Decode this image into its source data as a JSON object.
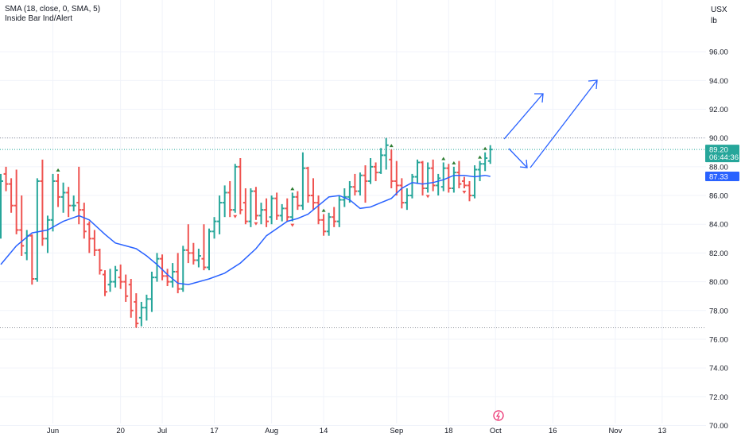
{
  "legend": {
    "line1": "SMA (18, close, 0, SMA, 5)",
    "line2": "Inside Bar Ind/Alert"
  },
  "unit": {
    "currency": "USX",
    "measure": "lb"
  },
  "price_tag": {
    "price": "89.20",
    "countdown": "06:44:36"
  },
  "sma_tag": "87.33",
  "chart_data": {
    "type": "ohlc",
    "colors": {
      "up": "#26a69a",
      "down": "#ef5350",
      "neutral": "#2e7d32",
      "sma": "#2962ff",
      "arrow": "#2962ff",
      "tag_last": "#26a69a",
      "tag_sma": "#2962ff"
    },
    "y_range": [
      69.2,
      99.6
    ],
    "y_ticks": [
      "70.00",
      "72.00",
      "74.00",
      "76.00",
      "78.00",
      "80.00",
      "82.00",
      "84.00",
      "86.00",
      "88.00",
      "90.00",
      "92.00",
      "94.00",
      "96.00"
    ],
    "x_labels": [
      {
        "label": "Jun",
        "bar": 10
      },
      {
        "label": "20",
        "bar": 23
      },
      {
        "label": "Jul",
        "bar": 31
      },
      {
        "label": "17",
        "bar": 41
      },
      {
        "label": "Aug",
        "bar": 52
      },
      {
        "label": "14",
        "bar": 62
      },
      {
        "label": "Sep",
        "bar": 76
      },
      {
        "label": "18",
        "bar": 86
      },
      {
        "label": "Oct",
        "bar": 95
      },
      {
        "label": "16",
        "bar": 106
      },
      {
        "label": "Nov",
        "bar": 118
      },
      {
        "label": "13",
        "bar": 127
      }
    ],
    "ref_lines": [
      90.0,
      89.2,
      76.8
    ],
    "bars": [
      [
        86.5,
        87.5,
        83.0,
        87.0
      ],
      [
        87.5,
        88.0,
        86.3,
        86.8
      ],
      [
        86.8,
        87.2,
        84.8,
        85.3
      ],
      [
        85.3,
        87.8,
        83.3,
        83.6
      ],
      [
        83.6,
        86.0,
        81.8,
        82.5
      ],
      [
        82.0,
        83.6,
        81.5,
        83.2
      ],
      [
        83.2,
        83.3,
        79.8,
        80.2
      ],
      [
        80.2,
        87.2,
        80.0,
        87.0
      ],
      [
        87.0,
        88.5,
        82.5,
        83.0
      ],
      [
        83.0,
        84.6,
        82.0,
        84.3
      ],
      [
        84.3,
        87.5,
        83.5,
        87.0
      ],
      [
        87.0,
        87.5,
        85.2,
        85.9
      ],
      [
        85.9,
        86.9,
        84.8,
        86.2
      ],
      [
        86.2,
        86.6,
        84.5,
        85.3
      ],
      [
        85.3,
        86.0,
        84.9,
        85.3
      ],
      [
        85.5,
        88.0,
        84.0,
        85.0
      ],
      [
        85.0,
        85.5,
        83.0,
        83.5
      ],
      [
        84.0,
        84.2,
        82.0,
        83.0
      ],
      [
        83.0,
        83.6,
        81.8,
        82.2
      ],
      [
        82.2,
        82.3,
        80.5,
        80.8
      ],
      [
        80.5,
        80.8,
        79.0,
        79.3
      ],
      [
        79.8,
        80.9,
        79.3,
        80.0
      ],
      [
        80.0,
        81.1,
        79.6,
        80.8
      ],
      [
        80.3,
        81.2,
        79.5,
        80.0
      ],
      [
        80.0,
        80.5,
        78.6,
        79.0
      ],
      [
        79.8,
        80.2,
        77.5,
        78.0
      ],
      [
        78.6,
        79.2,
        76.8,
        77.1
      ],
      [
        77.5,
        78.6,
        76.9,
        78.2
      ],
      [
        78.2,
        79.1,
        77.3,
        78.8
      ],
      [
        78.8,
        80.7,
        77.9,
        80.3
      ],
      [
        80.3,
        82.0,
        80.0,
        81.6
      ],
      [
        81.6,
        81.9,
        80.1,
        80.4
      ],
      [
        80.4,
        80.9,
        79.7,
        80.0
      ],
      [
        80.0,
        81.3,
        79.6,
        80.7
      ],
      [
        80.7,
        82.0,
        79.2,
        79.5
      ],
      [
        79.5,
        82.5,
        79.3,
        82.2
      ],
      [
        82.2,
        84.0,
        81.3,
        82.0
      ],
      [
        82.0,
        82.7,
        81.2,
        81.5
      ],
      [
        81.5,
        82.3,
        81.0,
        81.8
      ],
      [
        81.6,
        84.0,
        80.8,
        81.0
      ],
      [
        81.0,
        83.7,
        80.8,
        83.5
      ],
      [
        83.5,
        84.5,
        83.0,
        84.2
      ],
      [
        84.2,
        86.0,
        83.3,
        85.5
      ],
      [
        85.5,
        86.7,
        84.5,
        86.2
      ],
      [
        86.2,
        87.0,
        84.5,
        85.0
      ],
      [
        85.0,
        88.2,
        84.8,
        88.0
      ],
      [
        88.0,
        88.6,
        84.7,
        85.0
      ],
      [
        85.5,
        86.5,
        84.0,
        84.2
      ],
      [
        84.2,
        86.5,
        83.8,
        86.3
      ],
      [
        86.3,
        86.6,
        84.3,
        84.6
      ],
      [
        84.6,
        85.5,
        84.0,
        85.0
      ],
      [
        85.0,
        85.8,
        83.8,
        84.2
      ],
      [
        84.5,
        86.0,
        84.0,
        85.8
      ],
      [
        85.8,
        86.2,
        84.3,
        84.6
      ],
      [
        84.6,
        85.4,
        84.2,
        85.1
      ],
      [
        85.1,
        85.8,
        84.2,
        84.5
      ],
      [
        84.5,
        86.2,
        84.2,
        85.9
      ],
      [
        85.9,
        86.3,
        85.0,
        85.3
      ],
      [
        85.3,
        89.0,
        85.0,
        87.9
      ],
      [
        87.9,
        88.0,
        85.5,
        86.0
      ],
      [
        86.0,
        87.2,
        85.0,
        85.5
      ],
      [
        85.5,
        86.0,
        84.0,
        84.3
      ],
      [
        84.3,
        84.7,
        83.2,
        83.5
      ],
      [
        83.5,
        84.8,
        83.2,
        84.5
      ],
      [
        84.5,
        85.2,
        83.8,
        84.2
      ],
      [
        84.2,
        86.0,
        83.8,
        85.7
      ],
      [
        85.7,
        86.5,
        85.2,
        85.9
      ],
      [
        85.9,
        87.0,
        85.5,
        86.6
      ],
      [
        86.6,
        87.5,
        86.0,
        86.3
      ],
      [
        86.3,
        87.6,
        86.0,
        87.4
      ],
      [
        87.4,
        88.1,
        85.5,
        87.0
      ],
      [
        87.0,
        88.6,
        86.8,
        88.0
      ],
      [
        88.0,
        88.3,
        87.0,
        87.6
      ],
      [
        87.6,
        89.3,
        87.5,
        88.8
      ],
      [
        88.8,
        90.0,
        87.8,
        89.5
      ],
      [
        88.5,
        89.2,
        86.5,
        87.0
      ],
      [
        87.0,
        88.4,
        86.0,
        86.7
      ],
      [
        86.7,
        87.2,
        85.1,
        85.5
      ],
      [
        85.5,
        86.5,
        85.0,
        86.0
      ],
      [
        86.0,
        87.5,
        85.8,
        87.3
      ],
      [
        87.3,
        88.5,
        86.8,
        88.3
      ],
      [
        88.3,
        88.4,
        86.0,
        86.5
      ],
      [
        86.5,
        88.3,
        86.2,
        87.9
      ],
      [
        87.9,
        88.5,
        86.3,
        86.7
      ],
      [
        86.7,
        87.5,
        86.0,
        87.2
      ],
      [
        86.6,
        88.3,
        86.3,
        87.9
      ],
      [
        87.9,
        88.2,
        86.2,
        86.5
      ],
      [
        86.5,
        88.0,
        86.2,
        87.6
      ],
      [
        87.6,
        88.4,
        86.5,
        86.8
      ],
      [
        87.0,
        87.3,
        86.5,
        86.7
      ],
      [
        86.7,
        87.0,
        85.6,
        86.0
      ],
      [
        86.0,
        88.1,
        85.8,
        87.8
      ],
      [
        87.8,
        88.4,
        87.0,
        88.2
      ],
      [
        88.2,
        89.0,
        87.7,
        88.6
      ],
      [
        88.4,
        89.5,
        88.2,
        89.2
      ]
    ],
    "sma": [
      [
        0,
        81.2
      ],
      [
        3,
        82.5
      ],
      [
        6,
        83.4
      ],
      [
        9,
        83.6
      ],
      [
        12,
        84.2
      ],
      [
        15,
        84.6
      ],
      [
        17,
        84.3
      ],
      [
        20,
        83.3
      ],
      [
        22,
        82.7
      ],
      [
        24,
        82.5
      ],
      [
        26,
        82.3
      ],
      [
        28,
        81.8
      ],
      [
        30,
        81.2
      ],
      [
        32,
        80.5
      ],
      [
        34,
        79.9
      ],
      [
        36,
        79.8
      ],
      [
        38,
        80.0
      ],
      [
        40,
        80.2
      ],
      [
        43,
        80.6
      ],
      [
        46,
        81.3
      ],
      [
        49,
        82.3
      ],
      [
        51,
        83.2
      ],
      [
        53,
        83.7
      ],
      [
        55,
        84.2
      ],
      [
        57,
        84.4
      ],
      [
        59,
        84.7
      ],
      [
        61,
        85.3
      ],
      [
        63,
        85.9
      ],
      [
        65,
        86.0
      ],
      [
        67,
        85.7
      ],
      [
        69,
        85.1
      ],
      [
        71,
        85.2
      ],
      [
        73,
        85.5
      ],
      [
        75,
        85.8
      ],
      [
        77,
        86.5
      ],
      [
        79,
        86.9
      ],
      [
        81,
        86.8
      ],
      [
        83,
        86.9
      ],
      [
        85,
        87.1
      ],
      [
        87,
        87.4
      ],
      [
        89,
        87.4
      ],
      [
        91,
        87.3
      ],
      [
        93,
        87.4
      ],
      [
        94,
        87.33
      ]
    ],
    "inside_up": [
      11,
      56,
      62,
      75,
      85,
      87,
      92,
      93
    ],
    "inside_down": [
      45,
      49,
      56,
      82,
      89
    ]
  }
}
